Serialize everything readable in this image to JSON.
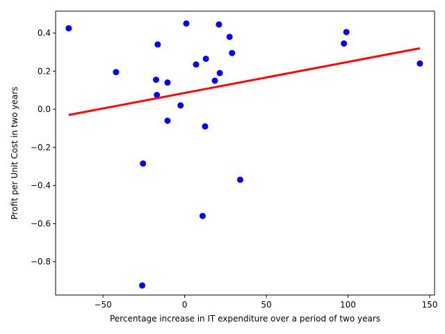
{
  "chart_data": {
    "type": "scatter",
    "title": "",
    "xlabel": "Percentage increase in IT expenditure over a period of two years",
    "ylabel": "Profit per Unit Cost in two years",
    "xlim": [
      -79,
      153
    ],
    "ylim": [
      -0.975,
      0.515
    ],
    "x_ticks": [
      -50,
      0,
      50,
      100,
      150
    ],
    "x_tick_labels": [
      "−50",
      "0",
      "50",
      "100",
      "150"
    ],
    "y_ticks": [
      -0.8,
      -0.6,
      -0.4,
      -0.2,
      0.0,
      0.2,
      0.4
    ],
    "y_tick_labels": [
      "−0.8",
      "−0.6",
      "−0.4",
      "−0.2",
      "0.0",
      "0.2",
      "0.4"
    ],
    "grid": false,
    "legend": "none",
    "series": [
      {
        "kind": "points",
        "color": "#0000ff",
        "points": [
          {
            "x": -71,
            "y": 0.425
          },
          {
            "x": -42,
            "y": 0.195
          },
          {
            "x": -17.5,
            "y": 0.155
          },
          {
            "x": -16.5,
            "y": 0.34
          },
          {
            "x": -17,
            "y": 0.075
          },
          {
            "x": -10.5,
            "y": 0.14
          },
          {
            "x": -10.5,
            "y": -0.06
          },
          {
            "x": -2.5,
            "y": 0.02
          },
          {
            "x": 1,
            "y": 0.45
          },
          {
            "x": 7,
            "y": 0.235
          },
          {
            "x": 11,
            "y": -0.56
          },
          {
            "x": 12.5,
            "y": -0.09
          },
          {
            "x": 13,
            "y": 0.265
          },
          {
            "x": 18.5,
            "y": 0.15
          },
          {
            "x": 21,
            "y": 0.445
          },
          {
            "x": 21.5,
            "y": 0.19
          },
          {
            "x": 27.5,
            "y": 0.38
          },
          {
            "x": 29,
            "y": 0.295
          },
          {
            "x": 34,
            "y": -0.37
          },
          {
            "x": -25.5,
            "y": -0.285
          },
          {
            "x": -26,
            "y": -0.925
          },
          {
            "x": 97.5,
            "y": 0.345
          },
          {
            "x": 99,
            "y": 0.405
          },
          {
            "x": 144,
            "y": 0.24
          }
        ]
      },
      {
        "kind": "fit_line",
        "color": "#ff0000",
        "x": [
          -71,
          144
        ],
        "y": [
          -0.03,
          0.32
        ]
      }
    ]
  }
}
